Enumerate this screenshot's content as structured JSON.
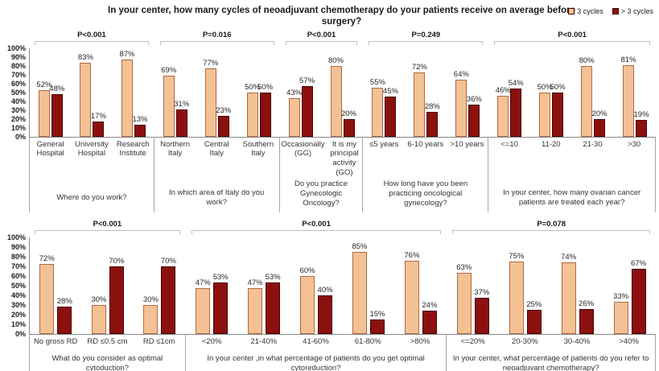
{
  "title": "In your center, how many cycles of neoadjuvant chemotherapy do your patients receive on average before surgery?",
  "legend": {
    "items": [
      {
        "label": "3 cycles"
      },
      {
        "label": "> 3 cycles"
      }
    ]
  },
  "colors": {
    "light_fill": "#F4C194",
    "light_border": "#AE6A44",
    "dark_fill": "#8C100E",
    "dark_border": "#450604",
    "axis": "#898989",
    "separator": "#A6A6A6",
    "bracket": "#BFBFBF"
  },
  "chart_data": [
    {
      "type": "bar",
      "row": "top",
      "series_names": [
        "3 cycles",
        "> 3 cycles"
      ],
      "ylim": [
        0,
        100
      ],
      "yticks": [
        "0%",
        "10%",
        "20%",
        "30%",
        "40%",
        "50%",
        "60%",
        "70%",
        "80%",
        "90%",
        "100%"
      ],
      "groups": [
        {
          "p_value": "P<0.001",
          "question": "Where do you work?",
          "categories": [
            "General Hospital",
            "University Hospital",
            "Research Institute"
          ],
          "series": [
            [
              52,
              83,
              87
            ],
            [
              48,
              17,
              13
            ]
          ]
        },
        {
          "p_value": "P=0.016",
          "question": "In which area of Italy do you work?",
          "categories": [
            "Northern Italy",
            "Central Italy",
            "Southern Italy"
          ],
          "series": [
            [
              69,
              77,
              50
            ],
            [
              31,
              23,
              50
            ]
          ]
        },
        {
          "p_value": "P<0.001",
          "question": "Do you practice Gynecologic Oncology?",
          "categories": [
            "Occasionally (GG)",
            "It is my principal activity (GO)"
          ],
          "series": [
            [
              43,
              80
            ],
            [
              57,
              20
            ]
          ]
        },
        {
          "p_value": "P=0.249",
          "question": "How long have you been practicing oncological gynecology?",
          "categories": [
            "≤5 years",
            "6-10 years",
            ">10 years"
          ],
          "series": [
            [
              55,
              72,
              64
            ],
            [
              45,
              28,
              36
            ]
          ]
        },
        {
          "p_value": "P<0.001",
          "question": "In your center, how many ovarian cancer patients are treated each year?",
          "categories": [
            "<=10",
            "11-20",
            "21-30",
            ">30"
          ],
          "series": [
            [
              46,
              50,
              80,
              81
            ],
            [
              54,
              50,
              20,
              19
            ]
          ]
        }
      ]
    },
    {
      "type": "bar",
      "row": "bottom",
      "series_names": [
        "3 cycles",
        "> 3 cycles"
      ],
      "ylim": [
        0,
        100
      ],
      "yticks": [
        "0%",
        "10%",
        "20%",
        "30%",
        "40%",
        "50%",
        "60%",
        "70%",
        "80%",
        "90%",
        "100%"
      ],
      "groups": [
        {
          "p_value": "P<0.001",
          "question": "What do you consider as optimal cytoduction?",
          "categories": [
            "No gross RD",
            "RD ≤0.5 cm",
            "RD ≤1cm"
          ],
          "series": [
            [
              72,
              30,
              30
            ],
            [
              28,
              70,
              70
            ]
          ]
        },
        {
          "p_value": "P<0.001",
          "question": "In your center ,in what percentage of patients do you get optimal cytoreduction?",
          "categories": [
            "<20%",
            "21-40%",
            "41-60%",
            "61-80%",
            ">80%"
          ],
          "series": [
            [
              47,
              47,
              60,
              85,
              76
            ],
            [
              53,
              53,
              40,
              15,
              24
            ]
          ]
        },
        {
          "p_value": "P=0.078",
          "question": "In your center, what percentage of patients do you refer to neoadjuvant chemotherapy?",
          "categories": [
            "<=20%",
            "20-30%",
            "30-40%",
            ">40%"
          ],
          "series": [
            [
              63,
              75,
              74,
              33
            ],
            [
              37,
              25,
              26,
              67
            ]
          ]
        }
      ]
    }
  ]
}
